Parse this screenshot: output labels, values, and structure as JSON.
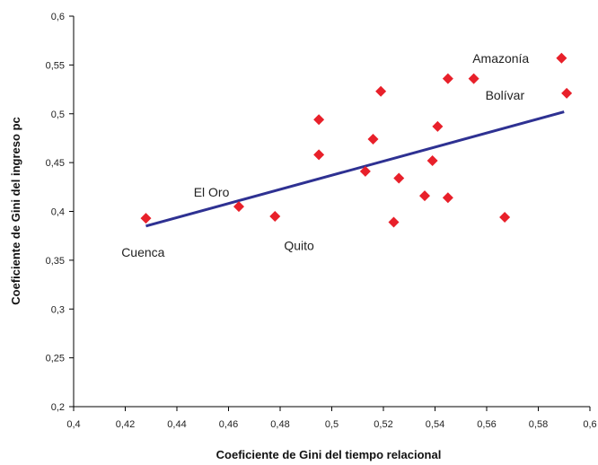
{
  "chart_data": {
    "type": "scatter",
    "xlabel": "Coeficiente de Gini del tiempo relacional",
    "ylabel": "Coeficiente de Gini del ingreso pc",
    "xlim": [
      0.4,
      0.6
    ],
    "ylim": [
      0.2,
      0.6
    ],
    "x_ticks": [
      "0,4",
      "0,42",
      "0,44",
      "0,46",
      "0,48",
      "0,5",
      "0,52",
      "0,54",
      "0,56",
      "0,58",
      "0,6"
    ],
    "y_ticks": [
      "0,2",
      "0,25",
      "0,3",
      "0,35",
      "0,4",
      "0,45",
      "0,5",
      "0,55",
      "0,6"
    ],
    "grid": false,
    "points": [
      {
        "x": 0.428,
        "y": 0.393
      },
      {
        "x": 0.464,
        "y": 0.405
      },
      {
        "x": 0.478,
        "y": 0.395
      },
      {
        "x": 0.495,
        "y": 0.494
      },
      {
        "x": 0.495,
        "y": 0.458
      },
      {
        "x": 0.513,
        "y": 0.441
      },
      {
        "x": 0.516,
        "y": 0.474
      },
      {
        "x": 0.519,
        "y": 0.523
      },
      {
        "x": 0.524,
        "y": 0.389
      },
      {
        "x": 0.526,
        "y": 0.434
      },
      {
        "x": 0.536,
        "y": 0.416
      },
      {
        "x": 0.539,
        "y": 0.452
      },
      {
        "x": 0.541,
        "y": 0.487
      },
      {
        "x": 0.545,
        "y": 0.536
      },
      {
        "x": 0.545,
        "y": 0.414
      },
      {
        "x": 0.555,
        "y": 0.536
      },
      {
        "x": 0.567,
        "y": 0.394
      },
      {
        "x": 0.589,
        "y": 0.557
      },
      {
        "x": 0.591,
        "y": 0.521
      }
    ],
    "trendline": {
      "x": [
        0.428,
        0.59
      ],
      "y": [
        0.385,
        0.502
      ]
    },
    "annotations": [
      {
        "text": "Amazonía",
        "x": 0.5545,
        "y": 0.557
      },
      {
        "text": "Bolívar",
        "x": 0.5595,
        "y": 0.519
      },
      {
        "text": "El Oro",
        "x": 0.4465,
        "y": 0.42
      },
      {
        "text": "Cuenca",
        "x": 0.4185,
        "y": 0.358
      },
      {
        "text": "Quito",
        "x": 0.4815,
        "y": 0.365
      }
    ],
    "colors": {
      "points": "#e8202a",
      "trendline": "#2e3192"
    }
  }
}
